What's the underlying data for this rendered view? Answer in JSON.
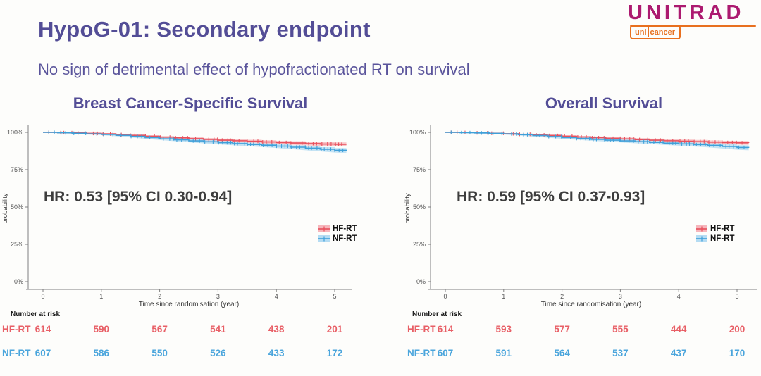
{
  "header": {
    "title": "HypoG-01: Secondary endpoint",
    "subtitle": "No sign of detrimental effect of hypofractionated RT on survival"
  },
  "logo": {
    "brand": "UNITRAD",
    "sub_left": "uni",
    "sub_right": "cancer"
  },
  "colors": {
    "title-purple": "#534d96",
    "subtitle-purple": "#5a549b",
    "brand-magenta": "#ac1a70",
    "brand-orange": "#e8701f",
    "hr-gray": "#3d3d3d",
    "hf-red": "#e8505c",
    "nf-blue": "#3fa0d9"
  },
  "chart_data": [
    {
      "type": "line",
      "subtype": "kaplan-meier",
      "title": "Breast Cancer-Specific Survival",
      "hr_annotation": "HR: 0.53 [95% CI 0.30-0.94]",
      "xlabel": "Time since randomisation (year)",
      "ylabel": "probability",
      "x_ticks": [
        "0",
        "1",
        "2",
        "3",
        "4",
        "5"
      ],
      "y_ticks": [
        "100%",
        "75%",
        "50%",
        "25%",
        "0%"
      ],
      "xlim": [
        0,
        5.3
      ],
      "ylim": [
        0,
        100
      ],
      "grid": false,
      "legend_position": "right-middle",
      "series": [
        {
          "name": "HF-RT",
          "color": "#e8505c",
          "band_color": "#f6b6bc",
          "points": [
            [
              0,
              100,
              0.2
            ],
            [
              0.25,
              99.8,
              0.3
            ],
            [
              0.5,
              99.6,
              0.35
            ],
            [
              0.75,
              99.3,
              0.4
            ],
            [
              1,
              99.0,
              0.5
            ],
            [
              1.25,
              98.5,
              0.55
            ],
            [
              1.5,
              98.0,
              0.6
            ],
            [
              1.75,
              97.4,
              0.7
            ],
            [
              2,
              96.8,
              0.8
            ],
            [
              2.25,
              96.3,
              0.85
            ],
            [
              2.5,
              95.8,
              0.9
            ],
            [
              2.75,
              95.3,
              0.95
            ],
            [
              3,
              94.8,
              1.0
            ],
            [
              3.25,
              94.4,
              1.0
            ],
            [
              3.5,
              94.0,
              1.05
            ],
            [
              3.75,
              93.6,
              1.1
            ],
            [
              4,
              93.2,
              1.1
            ],
            [
              4.25,
              92.9,
              1.15
            ],
            [
              4.5,
              92.5,
              1.2
            ],
            [
              4.75,
              92.2,
              1.25
            ],
            [
              5,
              92.0,
              1.3
            ],
            [
              5.2,
              91.9,
              1.35
            ]
          ]
        },
        {
          "name": "NF-RT",
          "color": "#3fa0d9",
          "band_color": "#b5dcf3",
          "points": [
            [
              0,
              100,
              0.2
            ],
            [
              0.25,
              99.7,
              0.3
            ],
            [
              0.5,
              99.4,
              0.35
            ],
            [
              0.75,
              99.0,
              0.45
            ],
            [
              1,
              98.6,
              0.5
            ],
            [
              1.25,
              98.0,
              0.6
            ],
            [
              1.5,
              97.3,
              0.7
            ],
            [
              1.75,
              96.5,
              0.8
            ],
            [
              2,
              95.7,
              0.85
            ],
            [
              2.25,
              95.0,
              0.9
            ],
            [
              2.5,
              94.3,
              0.95
            ],
            [
              2.75,
              93.7,
              1.0
            ],
            [
              3,
              93.1,
              1.05
            ],
            [
              3.25,
              92.5,
              1.1
            ],
            [
              3.5,
              91.9,
              1.15
            ],
            [
              3.75,
              91.4,
              1.2
            ],
            [
              4,
              90.8,
              1.25
            ],
            [
              4.25,
              90.1,
              1.3
            ],
            [
              4.5,
              89.4,
              1.35
            ],
            [
              4.75,
              88.7,
              1.45
            ],
            [
              5,
              88.0,
              1.5
            ],
            [
              5.2,
              87.7,
              1.55
            ]
          ]
        }
      ],
      "number_at_risk": {
        "label": "Number at risk",
        "rows": [
          {
            "name": "HF-RT",
            "color": "#e85f66",
            "values": [
              614,
              590,
              567,
              541,
              438,
              201
            ]
          },
          {
            "name": "NF-RT",
            "color": "#4aa5dc",
            "values": [
              607,
              586,
              550,
              526,
              433,
              172
            ]
          }
        ]
      }
    },
    {
      "type": "line",
      "subtype": "kaplan-meier",
      "title": "Overall Survival",
      "hr_annotation": "HR: 0.59 [95% CI 0.37-0.93]",
      "xlabel": "Time since randomisation (year)",
      "ylabel": "probability",
      "x_ticks": [
        "0",
        "1",
        "2",
        "3",
        "4",
        "5"
      ],
      "y_ticks": [
        "100%",
        "75%",
        "50%",
        "25%",
        "0%"
      ],
      "xlim": [
        0,
        5.3
      ],
      "ylim": [
        0,
        100
      ],
      "grid": false,
      "legend_position": "right-middle",
      "series": [
        {
          "name": "HF-RT",
          "color": "#e8505c",
          "band_color": "#f6b6bc",
          "points": [
            [
              0,
              100,
              0.2
            ],
            [
              0.25,
              99.9,
              0.25
            ],
            [
              0.5,
              99.7,
              0.3
            ],
            [
              0.75,
              99.4,
              0.4
            ],
            [
              1,
              99.1,
              0.45
            ],
            [
              1.25,
              98.7,
              0.5
            ],
            [
              1.5,
              98.3,
              0.6
            ],
            [
              1.75,
              97.9,
              0.65
            ],
            [
              2,
              97.4,
              0.7
            ],
            [
              2.25,
              96.9,
              0.75
            ],
            [
              2.5,
              96.4,
              0.8
            ],
            [
              2.75,
              96.0,
              0.85
            ],
            [
              3,
              95.6,
              0.9
            ],
            [
              3.25,
              95.2,
              0.95
            ],
            [
              3.5,
              94.8,
              1.0
            ],
            [
              3.75,
              94.4,
              1.0
            ],
            [
              4,
              94.1,
              1.05
            ],
            [
              4.25,
              93.8,
              1.1
            ],
            [
              4.5,
              93.5,
              1.1
            ],
            [
              4.75,
              93.2,
              1.15
            ],
            [
              5,
              93.0,
              1.2
            ],
            [
              5.2,
              92.9,
              1.25
            ]
          ]
        },
        {
          "name": "NF-RT",
          "color": "#3fa0d9",
          "band_color": "#b5dcf3",
          "points": [
            [
              0,
              100,
              0.2
            ],
            [
              0.25,
              99.8,
              0.3
            ],
            [
              0.5,
              99.6,
              0.35
            ],
            [
              0.75,
              99.3,
              0.4
            ],
            [
              1,
              99.0,
              0.45
            ],
            [
              1.25,
              98.5,
              0.55
            ],
            [
              1.5,
              97.9,
              0.65
            ],
            [
              1.75,
              97.2,
              0.75
            ],
            [
              2,
              96.5,
              0.8
            ],
            [
              2.25,
              95.9,
              0.85
            ],
            [
              2.5,
              95.3,
              0.9
            ],
            [
              2.75,
              94.8,
              0.95
            ],
            [
              3,
              94.3,
              1.0
            ],
            [
              3.25,
              93.8,
              1.05
            ],
            [
              3.5,
              93.3,
              1.1
            ],
            [
              3.75,
              92.8,
              1.15
            ],
            [
              4,
              92.3,
              1.2
            ],
            [
              4.25,
              91.8,
              1.25
            ],
            [
              4.5,
              91.3,
              1.3
            ],
            [
              4.75,
              90.6,
              1.4
            ],
            [
              5,
              89.9,
              1.5
            ],
            [
              5.2,
              89.6,
              1.55
            ]
          ]
        }
      ],
      "number_at_risk": {
        "label": "Number at risk",
        "rows": [
          {
            "name": "HF-RT",
            "color": "#e85f66",
            "values": [
              614,
              593,
              577,
              555,
              444,
              200
            ]
          },
          {
            "name": "NF-RT",
            "color": "#4aa5dc",
            "values": [
              607,
              591,
              564,
              537,
              437,
              170
            ]
          }
        ]
      }
    }
  ]
}
